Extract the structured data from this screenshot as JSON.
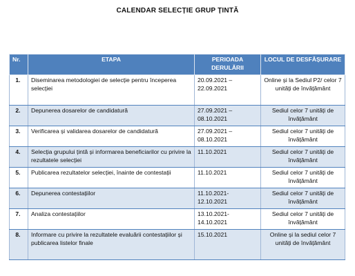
{
  "document": {
    "title": "CALENDAR SELECȚIE GRUP ȚINTĂ"
  },
  "table": {
    "headers": {
      "nr": "Nr.",
      "etapa": "ETAPA",
      "perioada": "PERIOADA DERULĂRII",
      "locul": "LOCUL DE DESFĂȘURARE"
    },
    "rows": [
      {
        "nr": "1.",
        "etapa": "Diseminarea metodologiei de selecție pentru începerea selecției",
        "perioada": "20.09.2021 – 22.09.2021",
        "locul": "Online și la Sediul P2/ celor 7 unități de învățământ"
      },
      {
        "nr": "2.",
        "etapa": "Depunerea dosarelor de candidatură",
        "perioada": "27.09.2021 – 08.10.2021",
        "locul": "Sediul celor 7 unități de învățământ"
      },
      {
        "nr": "3.",
        "etapa": "Verificarea și validarea dosarelor de candidatură",
        "perioada": "27.09.2021 – 08.10.2021",
        "locul": "Sediul celor 7 unități de învățământ"
      },
      {
        "nr": "4.",
        "etapa": "Selecția grupului țintă și informarea beneficiarilor cu privire la rezultatele selecției",
        "perioada": "11.10.2021",
        "locul": "Sediul celor 7 unități de învățământ"
      },
      {
        "nr": "5.",
        "etapa": "Publicarea rezultatelor selecției, înainte de contestații",
        "perioada": "11.10.2021",
        "locul": "Sediul celor 7 unități de învățământ"
      },
      {
        "nr": "6.",
        "etapa": "Depunerea contestațiilor",
        "perioada": "11.10.2021- 12.10.2021",
        "locul": "Sediul celor 7 unități de învățământ"
      },
      {
        "nr": "7.",
        "etapa": "Analiza contestațiilor",
        "perioada": "13.10.2021- 14.10.2021",
        "locul": "Sediul celor 7 unități de învățământ"
      },
      {
        "nr": "8.",
        "etapa": "Informare cu privire la rezultatele evaluării contestațiilor și publicarea listelor finale",
        "perioada": "15.10.2021",
        "locul": "Online și la sediul celor 7 unități de învățământ"
      }
    ]
  },
  "colors": {
    "header_background": "#4f81bd",
    "header_text": "#ffffff",
    "band_background": "#dbe5f1"
  }
}
